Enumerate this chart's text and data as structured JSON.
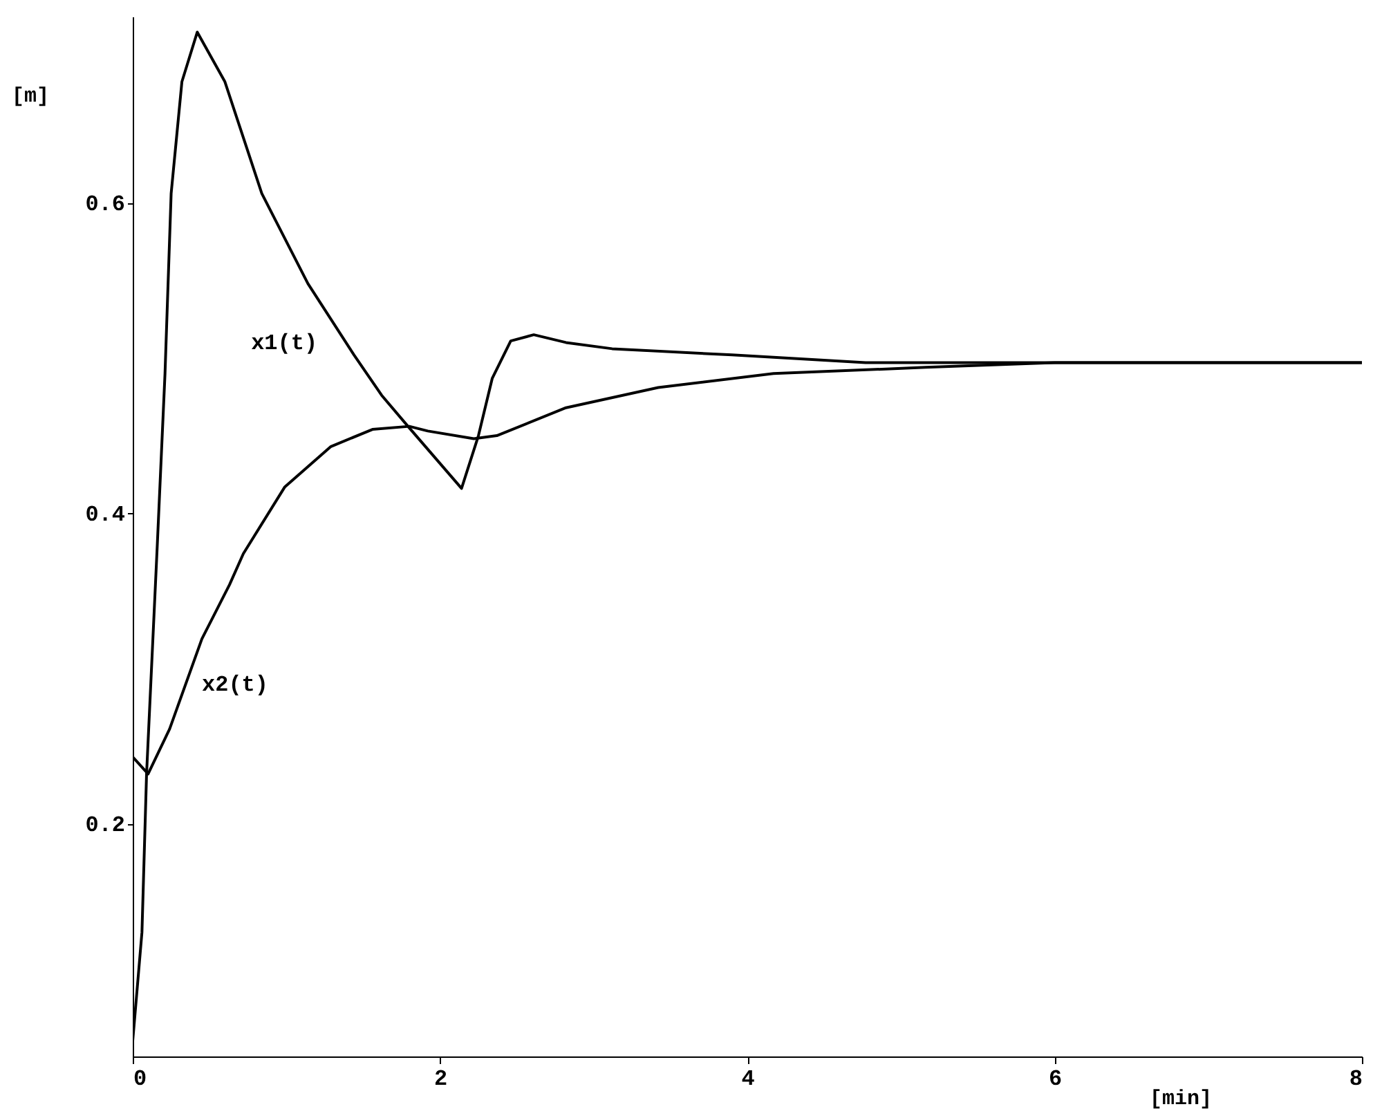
{
  "chart_data": {
    "type": "line",
    "xlabel": "[min]",
    "ylabel": "[m]",
    "xlim": [
      0,
      8
    ],
    "xticks": [
      0,
      2,
      4,
      6,
      8
    ],
    "ylim": [
      0.05,
      0.72
    ],
    "yticks": [
      0.2,
      0.4,
      0.6
    ],
    "grid": false,
    "legend": false,
    "marker": "none",
    "line_style": "solid",
    "series": [
      {
        "name": "x1(t)",
        "color": "#000000",
        "x": [
          0,
          0.06,
          0.09,
          0.16,
          0.21,
          0.25,
          0.32,
          0.42,
          0.6,
          0.84,
          1.14,
          1.44,
          1.62,
          1.8,
          2.14,
          2.25,
          2.34,
          2.46,
          2.61,
          2.82,
          3.12,
          3.9,
          4.77,
          6,
          8
        ],
        "values": [
          0.06,
          0.13,
          0.232,
          0.38,
          0.49,
          0.606,
          0.678,
          0.71,
          0.678,
          0.606,
          0.548,
          0.502,
          0.476,
          0.455,
          0.416,
          0.45,
          0.487,
          0.511,
          0.515,
          0.51,
          0.506,
          0.502,
          0.497,
          0.497,
          0.497
        ]
      },
      {
        "name": "x2(t)",
        "color": "#000000",
        "x": [
          0,
          0.1,
          0.24,
          0.45,
          0.63,
          0.72,
          0.99,
          1.29,
          1.56,
          1.8,
          1.92,
          2.22,
          2.37,
          2.82,
          3.42,
          4.17,
          5.16,
          6,
          8
        ],
        "values": [
          0.243,
          0.232,
          0.261,
          0.319,
          0.354,
          0.374,
          0.417,
          0.443,
          0.454,
          0.456,
          0.453,
          0.448,
          0.45,
          0.468,
          0.481,
          0.49,
          0.494,
          0.497,
          0.497
        ]
      }
    ]
  }
}
